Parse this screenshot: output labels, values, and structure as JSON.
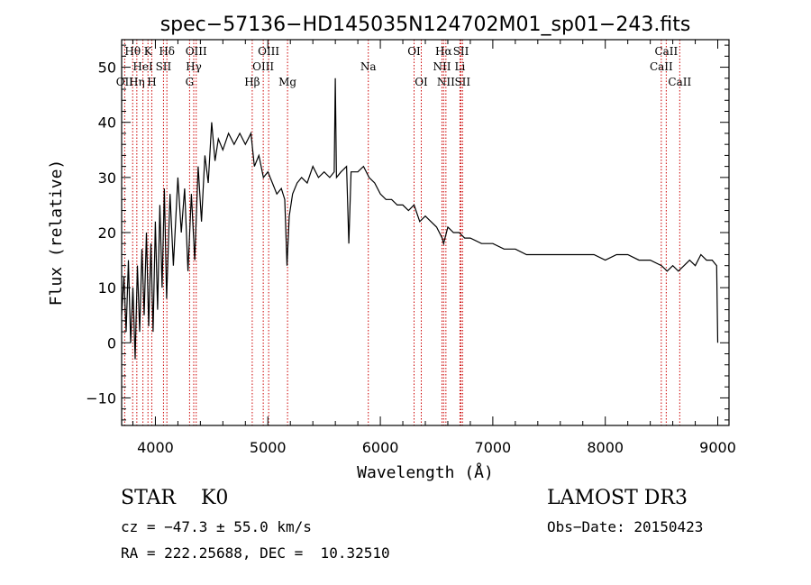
{
  "chart_data": {
    "type": "line",
    "title": "spec−57136−HD145035N124702M01_sp01−243.fits",
    "xlabel": "Wavelength (Å)",
    "ylabel": "Flux (relative)",
    "xlim": [
      3700,
      9100
    ],
    "ylim": [
      -15,
      55
    ],
    "xticks": [
      {
        "value": 4000,
        "label": "4000"
      },
      {
        "value": 5000,
        "label": "5000"
      },
      {
        "value": 6000,
        "label": "6000"
      },
      {
        "value": 7000,
        "label": "7000"
      },
      {
        "value": 8000,
        "label": "8000"
      },
      {
        "value": 9000,
        "label": "9000"
      }
    ],
    "yticks": [
      {
        "value": -10,
        "label": "−10"
      },
      {
        "value": 0,
        "label": "0"
      },
      {
        "value": 10,
        "label": "10"
      },
      {
        "value": 20,
        "label": "20"
      },
      {
        "value": 30,
        "label": "30"
      },
      {
        "value": 40,
        "label": "40"
      },
      {
        "value": 50,
        "label": "50"
      }
    ],
    "line_color": "#000000",
    "marker_color": "#cc0000",
    "lines": [
      {
        "label": "OII",
        "wl": 3727,
        "tier": 2
      },
      {
        "label": "Hθ",
        "wl": 3798,
        "tier": 0
      },
      {
        "label": "Hη",
        "wl": 3835,
        "tier": 2
      },
      {
        "label": "HeI",
        "wl": 3889,
        "tier": 1
      },
      {
        "label": "K",
        "wl": 3934,
        "tier": 0
      },
      {
        "label": "H",
        "wl": 3968,
        "tier": 2
      },
      {
        "label": "SII",
        "wl": 4072,
        "tier": 1
      },
      {
        "label": "Hδ",
        "wl": 4102,
        "tier": 0
      },
      {
        "label": "G",
        "wl": 4304,
        "tier": 2
      },
      {
        "label": "Hγ",
        "wl": 4341,
        "tier": 1
      },
      {
        "label": "OIII",
        "wl": 4363,
        "tier": 0
      },
      {
        "label": "Hβ",
        "wl": 4861,
        "tier": 2
      },
      {
        "label": "OIII",
        "wl": 4959,
        "tier": 1
      },
      {
        "label": "OIII",
        "wl": 5007,
        "tier": 0
      },
      {
        "label": "Mg",
        "wl": 5175,
        "tier": 2
      },
      {
        "label": "Na",
        "wl": 5893,
        "tier": 1
      },
      {
        "label": "OI",
        "wl": 6300,
        "tier": 0
      },
      {
        "label": "OI",
        "wl": 6364,
        "tier": 2
      },
      {
        "label": "NII",
        "wl": 6548,
        "tier": 1
      },
      {
        "label": "Hα",
        "wl": 6563,
        "tier": 0
      },
      {
        "label": "NII",
        "wl": 6583,
        "tier": 2
      },
      {
        "label": "Li",
        "wl": 6708,
        "tier": 1
      },
      {
        "label": "SII",
        "wl": 6717,
        "tier": 0
      },
      {
        "label": "SII",
        "wl": 6731,
        "tier": 2
      },
      {
        "label": "CaII",
        "wl": 8498,
        "tier": 1
      },
      {
        "label": "CaII",
        "wl": 8542,
        "tier": 0
      },
      {
        "label": "CaII",
        "wl": 8662,
        "tier": 2
      }
    ],
    "spectrum": [
      [
        3700,
        5
      ],
      [
        3720,
        12
      ],
      [
        3740,
        2
      ],
      [
        3760,
        15
      ],
      [
        3780,
        0
      ],
      [
        3800,
        10
      ],
      [
        3820,
        -3
      ],
      [
        3840,
        14
      ],
      [
        3860,
        2
      ],
      [
        3880,
        17
      ],
      [
        3900,
        5
      ],
      [
        3920,
        20
      ],
      [
        3940,
        3
      ],
      [
        3960,
        18
      ],
      [
        3980,
        2
      ],
      [
        4000,
        22
      ],
      [
        4020,
        6
      ],
      [
        4040,
        25
      ],
      [
        4060,
        10
      ],
      [
        4080,
        28
      ],
      [
        4100,
        8
      ],
      [
        4130,
        27
      ],
      [
        4160,
        14
      ],
      [
        4200,
        30
      ],
      [
        4230,
        20
      ],
      [
        4260,
        28
      ],
      [
        4290,
        13
      ],
      [
        4320,
        27
      ],
      [
        4350,
        15
      ],
      [
        4380,
        32
      ],
      [
        4410,
        22
      ],
      [
        4440,
        34
      ],
      [
        4470,
        29
      ],
      [
        4500,
        40
      ],
      [
        4530,
        33
      ],
      [
        4560,
        37
      ],
      [
        4600,
        35
      ],
      [
        4650,
        38
      ],
      [
        4700,
        36
      ],
      [
        4750,
        38
      ],
      [
        4800,
        36
      ],
      [
        4850,
        38
      ],
      [
        4880,
        32
      ],
      [
        4920,
        34
      ],
      [
        4960,
        30
      ],
      [
        5000,
        31
      ],
      [
        5040,
        29
      ],
      [
        5080,
        27
      ],
      [
        5120,
        28
      ],
      [
        5150,
        26
      ],
      [
        5170,
        14
      ],
      [
        5190,
        23
      ],
      [
        5220,
        27
      ],
      [
        5260,
        29
      ],
      [
        5300,
        30
      ],
      [
        5350,
        29
      ],
      [
        5400,
        32
      ],
      [
        5450,
        30
      ],
      [
        5500,
        31
      ],
      [
        5550,
        30
      ],
      [
        5590,
        31
      ],
      [
        5600,
        48
      ],
      [
        5610,
        30
      ],
      [
        5650,
        31
      ],
      [
        5700,
        32
      ],
      [
        5720,
        18
      ],
      [
        5740,
        31
      ],
      [
        5800,
        31
      ],
      [
        5850,
        32
      ],
      [
        5900,
        30
      ],
      [
        5950,
        29
      ],
      [
        6000,
        27
      ],
      [
        6050,
        26
      ],
      [
        6100,
        26
      ],
      [
        6150,
        25
      ],
      [
        6200,
        25
      ],
      [
        6250,
        24
      ],
      [
        6300,
        25
      ],
      [
        6350,
        22
      ],
      [
        6400,
        23
      ],
      [
        6450,
        22
      ],
      [
        6500,
        21
      ],
      [
        6550,
        19
      ],
      [
        6563,
        18
      ],
      [
        6600,
        21
      ],
      [
        6650,
        20
      ],
      [
        6700,
        20
      ],
      [
        6750,
        19
      ],
      [
        6800,
        19
      ],
      [
        6900,
        18
      ],
      [
        7000,
        18
      ],
      [
        7100,
        17
      ],
      [
        7200,
        17
      ],
      [
        7300,
        16
      ],
      [
        7400,
        16
      ],
      [
        7500,
        16
      ],
      [
        7600,
        16
      ],
      [
        7700,
        16
      ],
      [
        7800,
        16
      ],
      [
        7900,
        16
      ],
      [
        8000,
        15
      ],
      [
        8100,
        16
      ],
      [
        8200,
        16
      ],
      [
        8300,
        15
      ],
      [
        8400,
        15
      ],
      [
        8500,
        14
      ],
      [
        8550,
        13
      ],
      [
        8600,
        14
      ],
      [
        8650,
        13
      ],
      [
        8700,
        14
      ],
      [
        8750,
        15
      ],
      [
        8800,
        14
      ],
      [
        8850,
        16
      ],
      [
        8900,
        15
      ],
      [
        8950,
        15
      ],
      [
        8990,
        14
      ],
      [
        9000,
        0
      ]
    ]
  },
  "info": {
    "star_class": "STAR    K0",
    "survey": "LAMOST DR3",
    "cz": "cz = −47.3 ± 55.0 km/s",
    "obs_date": "Obs−Date: 20150423",
    "coords": "RA = 222.25688, DEC =  10.32510"
  }
}
